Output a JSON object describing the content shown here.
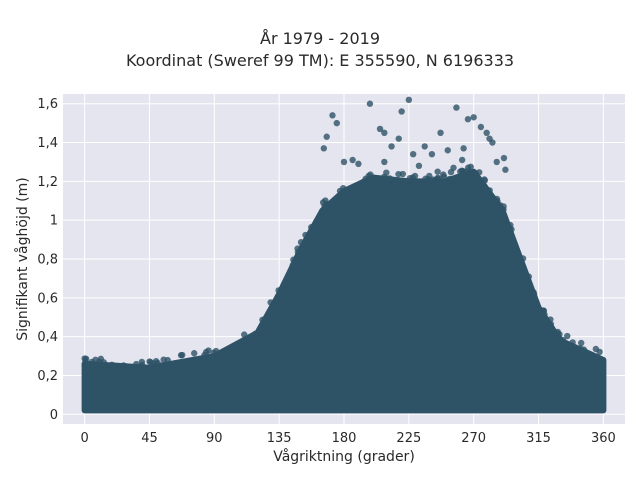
{
  "chart_data": {
    "type": "scatter",
    "title": "År 1979 - 2019",
    "subtitle": "Koordinat (Sweref 99 TM): E 355590, N 6196333",
    "xlabel": "Vågriktning (grader)",
    "ylabel": "Signifikant våghöjd (m)",
    "xlim": [
      -15,
      375
    ],
    "ylim": [
      -0.05,
      1.65
    ],
    "xticks": [
      0,
      45,
      90,
      135,
      180,
      225,
      270,
      315,
      360
    ],
    "xtick_labels": [
      "0",
      "45",
      "90",
      "135",
      "180",
      "225",
      "270",
      "315",
      "360"
    ],
    "yticks": [
      0,
      0.2,
      0.4,
      0.6,
      0.8,
      1,
      1.2,
      1.4,
      1.6
    ],
    "ytick_labels": [
      "0",
      "0,2",
      "0,4",
      "0,6",
      "0,8",
      "1",
      "1,2",
      "1,4",
      "1,6"
    ],
    "grid": true,
    "marker_color": "#2e5266",
    "background_color": "#e5e5ef",
    "envelope": [
      {
        "x": 0,
        "lo": 0.02,
        "hi": 0.26
      },
      {
        "x": 45,
        "lo": 0.02,
        "hi": 0.24
      },
      {
        "x": 90,
        "lo": 0.02,
        "hi": 0.3
      },
      {
        "x": 120,
        "lo": 0.02,
        "hi": 0.42
      },
      {
        "x": 135,
        "lo": 0.02,
        "hi": 0.62
      },
      {
        "x": 150,
        "lo": 0.02,
        "hi": 0.85
      },
      {
        "x": 165,
        "lo": 0.02,
        "hi": 1.05
      },
      {
        "x": 180,
        "lo": 0.02,
        "hi": 1.15
      },
      {
        "x": 200,
        "lo": 0.02,
        "hi": 1.22
      },
      {
        "x": 225,
        "lo": 0.02,
        "hi": 1.2
      },
      {
        "x": 250,
        "lo": 0.02,
        "hi": 1.2
      },
      {
        "x": 270,
        "lo": 0.02,
        "hi": 1.25
      },
      {
        "x": 290,
        "lo": 0.02,
        "hi": 1.05
      },
      {
        "x": 305,
        "lo": 0.02,
        "hi": 0.75
      },
      {
        "x": 315,
        "lo": 0.02,
        "hi": 0.55
      },
      {
        "x": 330,
        "lo": 0.02,
        "hi": 0.38
      },
      {
        "x": 360,
        "lo": 0.02,
        "hi": 0.28
      }
    ],
    "outliers": [
      {
        "x": 172,
        "y": 1.54
      },
      {
        "x": 175,
        "y": 1.5
      },
      {
        "x": 168,
        "y": 1.43
      },
      {
        "x": 180,
        "y": 1.3
      },
      {
        "x": 186,
        "y": 1.31
      },
      {
        "x": 198,
        "y": 1.6
      },
      {
        "x": 205,
        "y": 1.47
      },
      {
        "x": 208,
        "y": 1.45
      },
      {
        "x": 213,
        "y": 1.38
      },
      {
        "x": 218,
        "y": 1.42
      },
      {
        "x": 220,
        "y": 1.56
      },
      {
        "x": 225,
        "y": 1.62
      },
      {
        "x": 228,
        "y": 1.34
      },
      {
        "x": 236,
        "y": 1.38
      },
      {
        "x": 241,
        "y": 1.34
      },
      {
        "x": 247,
        "y": 1.45
      },
      {
        "x": 252,
        "y": 1.36
      },
      {
        "x": 258,
        "y": 1.58
      },
      {
        "x": 263,
        "y": 1.37
      },
      {
        "x": 266,
        "y": 1.52
      },
      {
        "x": 270,
        "y": 1.53
      },
      {
        "x": 275,
        "y": 1.48
      },
      {
        "x": 279,
        "y": 1.45
      },
      {
        "x": 281,
        "y": 1.42
      },
      {
        "x": 283,
        "y": 1.4
      },
      {
        "x": 286,
        "y": 1.3
      },
      {
        "x": 291,
        "y": 1.32
      },
      {
        "x": 292,
        "y": 1.26
      },
      {
        "x": 262,
        "y": 1.31
      },
      {
        "x": 256,
        "y": 1.27
      },
      {
        "x": 232,
        "y": 1.28
      },
      {
        "x": 190,
        "y": 1.29
      },
      {
        "x": 166,
        "y": 1.37
      },
      {
        "x": 245,
        "y": 1.25
      },
      {
        "x": 208,
        "y": 1.3
      }
    ]
  }
}
